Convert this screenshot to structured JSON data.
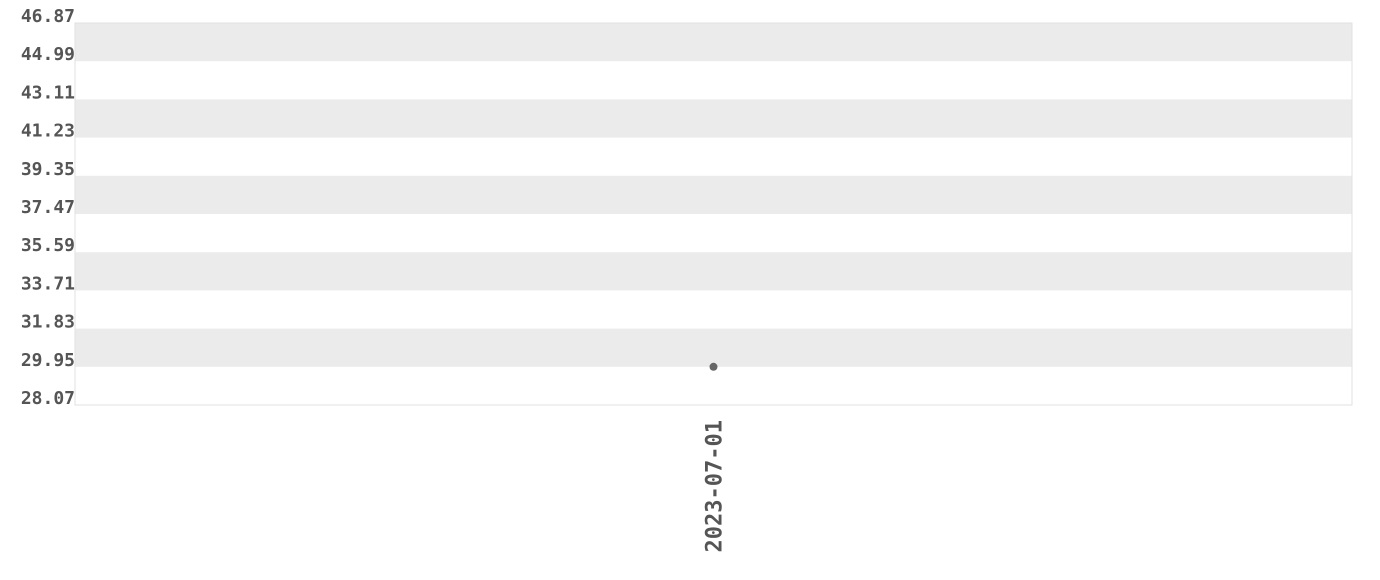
{
  "chart_data": {
    "type": "line",
    "categories": [
      "2023-07-01"
    ],
    "values": [
      29.95
    ],
    "color": "#666666",
    "ylim": [
      28.07,
      46.87
    ],
    "yticks": [
      28.07,
      29.95,
      31.83,
      33.71,
      35.59,
      37.47,
      39.35,
      41.23,
      43.11,
      44.99,
      46.87
    ],
    "grid": true
  }
}
